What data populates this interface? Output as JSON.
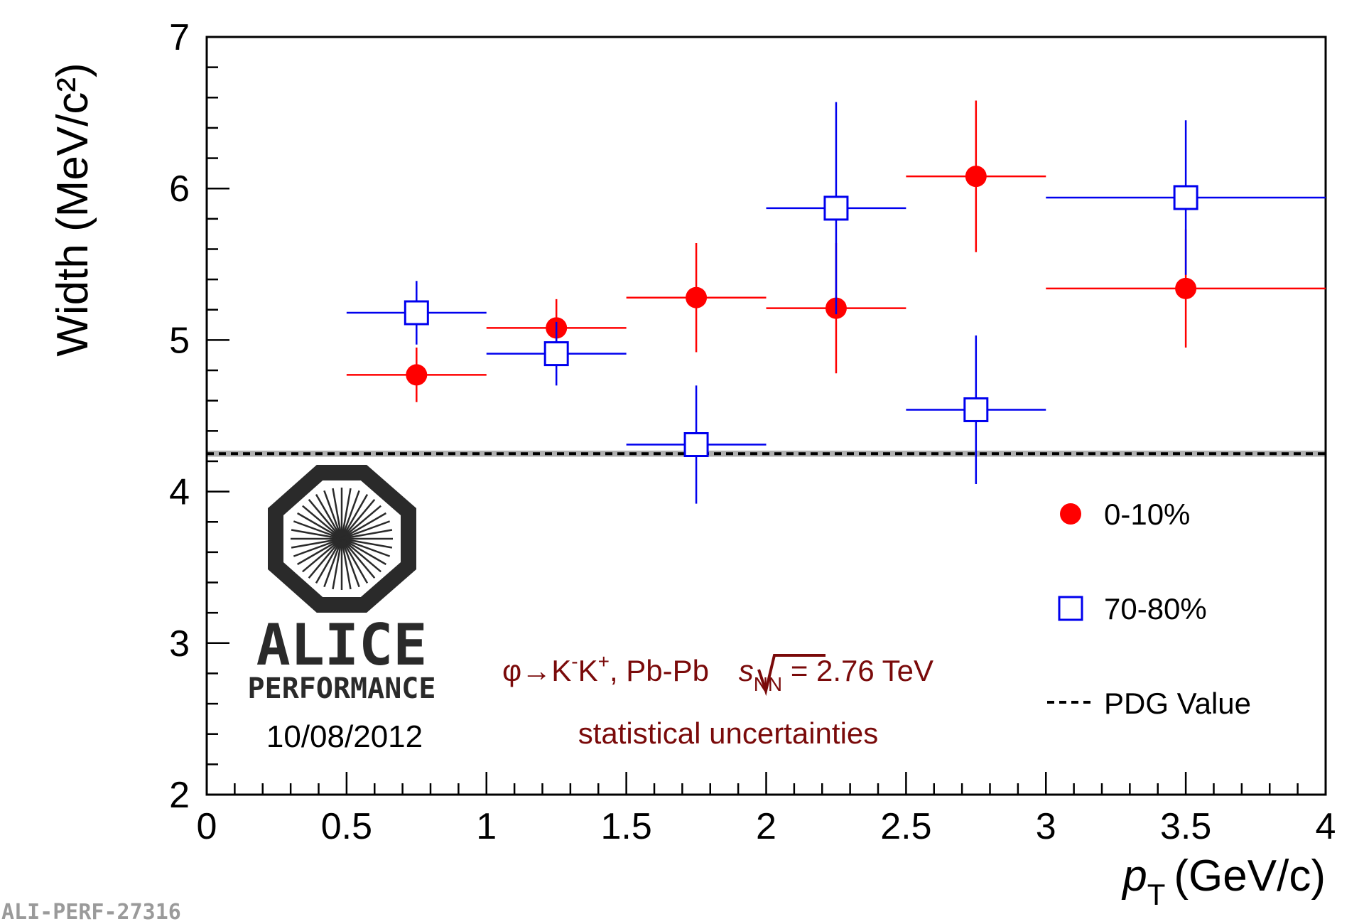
{
  "chart_data": {
    "type": "scatter",
    "xlabel_italic": "p",
    "xlabel_sub": "T",
    "xlabel_unit": "(GeV/c)",
    "ylabel": "Width (MeV/c²)",
    "xlim": [
      0,
      4
    ],
    "ylim": [
      2,
      7
    ],
    "x_ticks": [
      "0",
      "0.5",
      "1",
      "1.5",
      "2",
      "2.5",
      "3",
      "3.5",
      "4"
    ],
    "y_ticks": [
      "2",
      "3",
      "4",
      "5",
      "6",
      "7"
    ],
    "series": [
      {
        "name": "0-10%",
        "marker": "filled-circle",
        "color": "#ff0000",
        "points": [
          {
            "x": 0.75,
            "xerr": 0.25,
            "y": 4.77,
            "yerr": 0.18
          },
          {
            "x": 1.25,
            "xerr": 0.25,
            "y": 5.08,
            "yerr": 0.19
          },
          {
            "x": 1.75,
            "xerr": 0.25,
            "y": 5.28,
            "yerr": 0.36
          },
          {
            "x": 2.25,
            "xerr": 0.25,
            "y": 5.21,
            "yerr": 0.43
          },
          {
            "x": 2.75,
            "xerr": 0.25,
            "y": 6.08,
            "yerr": 0.5
          },
          {
            "x": 3.5,
            "xerr": 0.5,
            "y": 5.34,
            "yerr": 0.39
          }
        ]
      },
      {
        "name": "70-80%",
        "marker": "open-square",
        "color": "#0000ee",
        "points": [
          {
            "x": 0.75,
            "xerr": 0.25,
            "y": 5.18,
            "yerr": 0.21
          },
          {
            "x": 1.25,
            "xerr": 0.25,
            "y": 4.91,
            "yerr": 0.21
          },
          {
            "x": 1.75,
            "xerr": 0.25,
            "y": 4.31,
            "yerr": 0.39
          },
          {
            "x": 2.25,
            "xerr": 0.25,
            "y": 5.87,
            "yerr": 0.7
          },
          {
            "x": 2.75,
            "xerr": 0.25,
            "y": 4.54,
            "yerr": 0.49
          },
          {
            "x": 3.5,
            "xerr": 0.5,
            "y": 5.94,
            "yerr": 0.51
          }
        ]
      }
    ],
    "reference_line": {
      "name": "PDG Value",
      "y": 4.25,
      "band": [
        4.23,
        4.27
      ]
    },
    "legend": [
      "0-10%",
      "70-80%",
      "PDG Value"
    ],
    "legend_position": "right"
  },
  "annotations": {
    "reaction_prefix": "φ→K",
    "reaction_sup1": "-",
    "reaction_k2": "K",
    "reaction_sup2": "+",
    "reaction_system": ", Pb-Pb ",
    "reaction_s": "s",
    "reaction_sub": "NN",
    "reaction_energy": " = 2.76 TeV",
    "uncertainty_note": "statistical uncertainties",
    "logo_line1": "ALICE",
    "logo_line2": "PERFORMANCE",
    "date": "10/08/2012",
    "footer_id": "ALI-PERF-27316"
  }
}
